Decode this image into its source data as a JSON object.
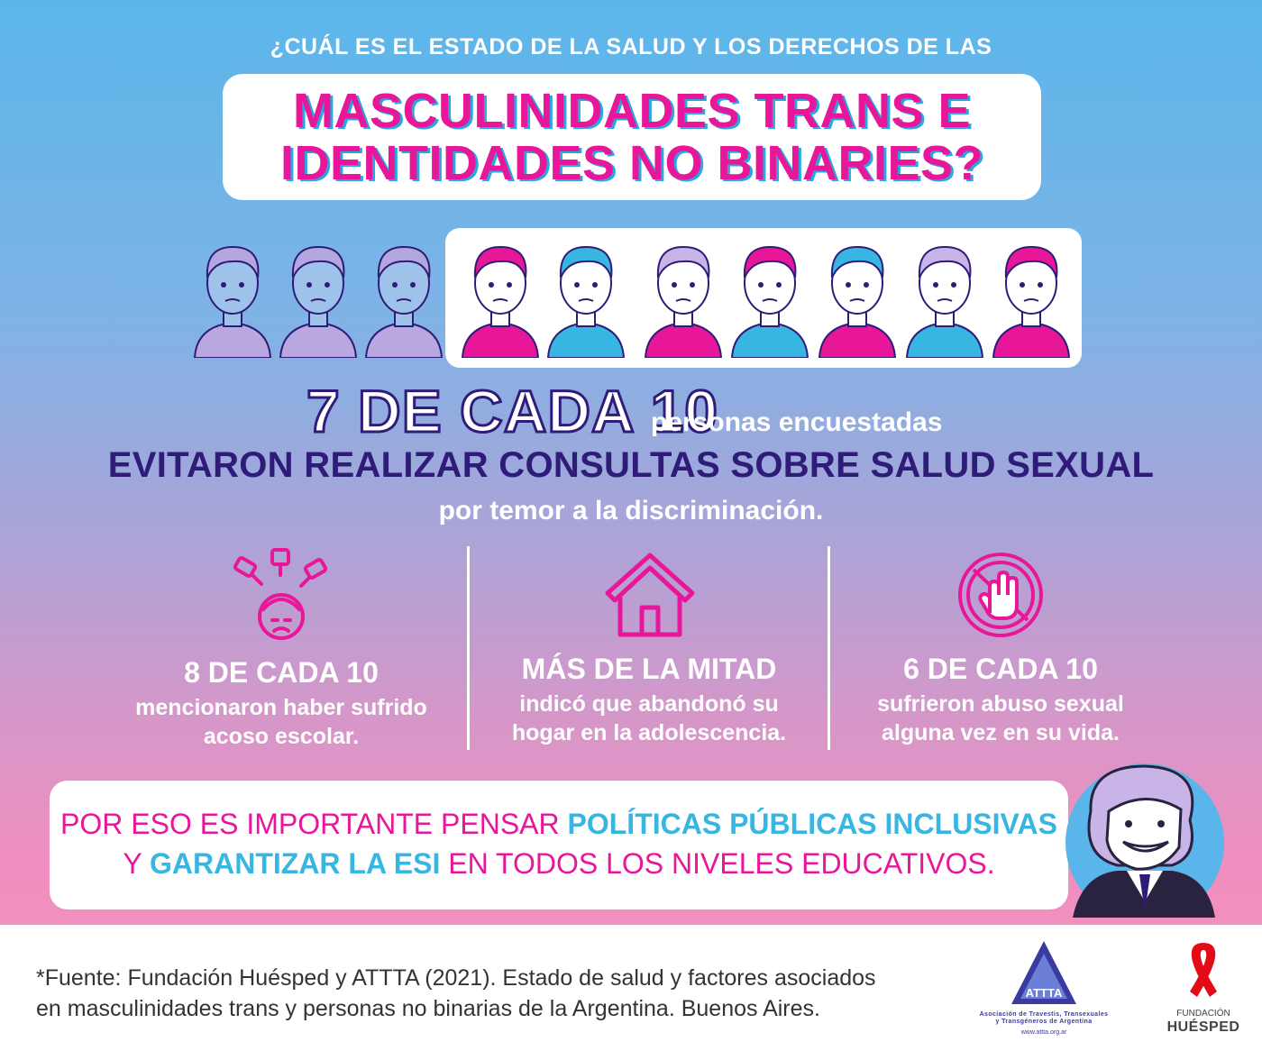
{
  "header": {
    "subtitle": "¿CUÁL ES EL ESTADO DE LA SALUD Y LOS DERECHOS DE LAS",
    "title_line1": "MASCULINIDADES TRANS E",
    "title_line2": "IDENTIDADES NO BINARIES?"
  },
  "figures": {
    "total": 10,
    "highlighted": 7
  },
  "main_stat": {
    "number": "7 DE CADA 10",
    "rest": "personas encuestadas",
    "headline": "EVITARON REALIZAR CONSULTAS SOBRE SALUD SEXUAL",
    "sub": "por temor a la discriminación."
  },
  "stats": [
    {
      "title": "8 DE CADA 10",
      "line1": "mencionaron haber sufrido",
      "line2": "acoso escolar.",
      "icon": "bullying-icon"
    },
    {
      "title": "MÁS DE LA MITAD",
      "line1": "indicó que abandonó su",
      "line2": "hogar en la adolescencia.",
      "icon": "house-icon"
    },
    {
      "title": "6 DE CADA 10",
      "line1": "sufrieron abuso sexual",
      "line2": "alguna vez en su vida.",
      "icon": "stop-hand-icon"
    }
  ],
  "call_to_action": {
    "part1": "POR ESO ES IMPORTANTE PENSAR ",
    "highlight1": "POLÍTICAS PÚBLICAS INCLUSIVAS",
    "part2": "Y ",
    "highlight2": "GARANTIZAR LA ESI",
    "part3": " EN TODOS LOS NIVELES EDUCATIVOS."
  },
  "footer": {
    "source_line1": "*Fuente: Fundación Huésped y ATTTA (2021). Estado de salud y factores asociados",
    "source_line2": "en masculinidades trans y personas no binarias de la Argentina. Buenos Aires.",
    "attta_logo_text": "ATTTA",
    "attta_caption_line1": "Asociación de Travestis, Transexuales",
    "attta_caption_line2": "y Transgéneros de Argentina",
    "attta_url": "www.attta.org.ar",
    "huesped_label": "FUNDACIÓN",
    "huesped_name": "HUÉSPED"
  },
  "colors": {
    "magenta": "#e8179a",
    "cyan": "#37b6e1",
    "navy": "#2f1c78",
    "sky": "#5ab6ea",
    "pink": "#f48fbf"
  }
}
